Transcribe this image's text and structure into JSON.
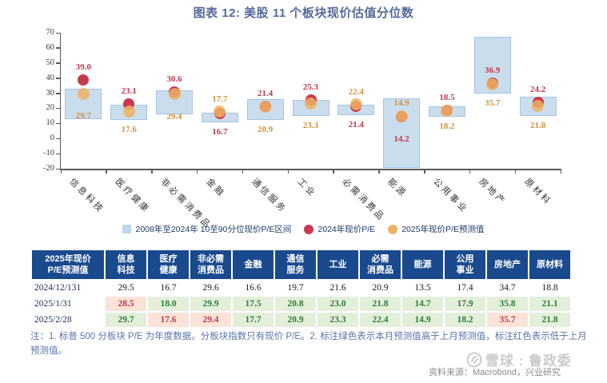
{
  "title": "图表 12: 美股 11 个板块现价估值分位数",
  "chart_data": {
    "type": "range-bar-with-dots",
    "ylim": [
      -20,
      70
    ],
    "yticks": [
      70,
      60,
      50,
      40,
      30,
      20,
      10,
      0,
      -10,
      -20
    ],
    "grid": false,
    "legend_position": "bottom",
    "categories": [
      "信息科技",
      "医疗健康",
      "非必需消费品",
      "金融",
      "通信服务",
      "工业",
      "必需消费品",
      "能源",
      "公用事业",
      "房地产",
      "原材料"
    ],
    "range_low": [
      13,
      12.5,
      16,
      10.5,
      12.5,
      15,
      15.5,
      -19.5,
      14.5,
      30,
      15
    ],
    "range_high": [
      33,
      22.5,
      32,
      17,
      26,
      25.5,
      22.5,
      26.5,
      21.5,
      67.5,
      27.5
    ],
    "series": [
      {
        "name": "2024年现价P/E",
        "color": "#c9394e",
        "values": [
          39.0,
          23.1,
          30.6,
          16.7,
          21.4,
          25.3,
          21.4,
          14.2,
          18.5,
          36.9,
          24.2
        ]
      },
      {
        "name": "2025年现价P/E预测值",
        "color": "#eeb162",
        "values": [
          29.7,
          17.6,
          29.4,
          17.7,
          20.9,
          23.3,
          22.4,
          14.9,
          18.2,
          35.7,
          21.8
        ]
      }
    ],
    "range_legend_label": "2008年至2024年  10至90分位现价P/E区间",
    "range_color": "#cadded",
    "legend": [
      {
        "label": "2008年至2024年  10至90分位现价P/E区间",
        "marker": "square",
        "color": "#bdd7ee"
      },
      {
        "label": "2024年现价P/E",
        "marker": "circle",
        "color": "#c9394e"
      },
      {
        "label": "2025年现价P/E预测值",
        "marker": "circle",
        "color": "#f0b264"
      }
    ]
  },
  "table": {
    "corner_header": "2025年现价\nP/E预测值",
    "columns": [
      "信息\n科技",
      "医疗\n健康",
      "非必需\n消费品",
      "金融",
      "通信\n服务",
      "工业",
      "必需\n消费品",
      "能源",
      "公用\n事业",
      "房地产",
      "原材料"
    ],
    "rows": [
      {
        "date": "2024/12/131",
        "values": [
          "29.5",
          "16.7",
          "29.6",
          "16.6",
          "19.7",
          "21.6",
          "20.9",
          "13.5",
          "17.4",
          "34.7",
          "18.8"
        ],
        "styles": [
          "plain",
          "plain",
          "plain",
          "plain",
          "plain",
          "plain",
          "plain",
          "plain",
          "plain",
          "plain",
          "plain"
        ]
      },
      {
        "date": "2025/1/31",
        "values": [
          "28.5",
          "18.0",
          "29.9",
          "17.5",
          "20.8",
          "23.0",
          "21.8",
          "14.7",
          "17.9",
          "35.8",
          "21.1"
        ],
        "styles": [
          "down",
          "up",
          "up",
          "up",
          "up",
          "up",
          "up",
          "up",
          "up",
          "up",
          "up"
        ]
      },
      {
        "date": "2025/2/28",
        "values": [
          "29.7",
          "17.6",
          "29.4",
          "17.7",
          "20.9",
          "23.3",
          "22.4",
          "14.9",
          "18.2",
          "35.7",
          "21.8"
        ],
        "styles": [
          "up",
          "down",
          "down",
          "up",
          "up",
          "up",
          "up",
          "up",
          "up",
          "down",
          "up"
        ]
      }
    ]
  },
  "note": "注：1. 标普 500 分板块 P/E 为年度数据。分板块指数只有现价 P/E。2. 标注绿色表示本月预测值高于上月预测值，标注红色表示低于上月预测值。",
  "source": "资料来源：Macrobond，兴业研究",
  "watermark_text": "雪球 : 鲁政委"
}
